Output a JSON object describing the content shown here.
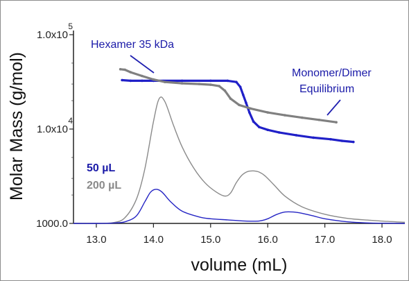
{
  "chart_data": {
    "type": "line",
    "xlabel": "volume (mL)",
    "ylabel": "Molar Mass (g/mol)",
    "xlim": [
      12.6,
      18.4
    ],
    "x_ticks": [
      "13.0",
      "14.0",
      "15.0",
      "16.0",
      "17.0",
      "18.0"
    ],
    "y_scale": "log",
    "ylim": [
      1000,
      100000
    ],
    "y_ticks": [
      {
        "value": 1000,
        "label": "1000.0"
      },
      {
        "value": 10000,
        "label": "1.0x10",
        "exp": "4"
      },
      {
        "value": 100000,
        "label": "1.0x10",
        "exp": "5"
      }
    ],
    "legend": [
      {
        "label": "50 µL",
        "color": "#1a1aa8"
      },
      {
        "label": "200 µL",
        "color": "#8a8a8a"
      }
    ],
    "annotations": [
      {
        "text": "Hexamer 35 kDa",
        "color": "#1a1aa8"
      },
      {
        "text_lines": [
          "Monomer/Dimer",
          "Equilibrium"
        ],
        "color": "#1a1aa8"
      }
    ],
    "series": [
      {
        "name": "50 µL molar mass",
        "color": "#2020c8",
        "marker": "dots",
        "x": [
          13.45,
          13.6,
          13.8,
          14.0,
          14.5,
          15.0,
          15.3,
          15.45,
          15.52,
          15.57,
          15.62,
          15.68,
          15.75,
          15.85,
          16.0,
          16.2,
          16.5,
          16.8,
          17.1,
          17.3,
          17.5
        ],
        "y": [
          33000,
          32500,
          32500,
          32500,
          32500,
          32500,
          32500,
          31500,
          28000,
          23000,
          19000,
          15000,
          12000,
          10500,
          9800,
          9200,
          8600,
          8100,
          7800,
          7500,
          7300
        ]
      },
      {
        "name": "200 µL molar mass",
        "color": "#808080",
        "marker": "dots",
        "x": [
          13.42,
          13.5,
          13.6,
          13.8,
          14.0,
          14.2,
          14.5,
          14.8,
          15.0,
          15.15,
          15.25,
          15.35,
          15.5,
          15.7,
          16.0,
          16.3,
          16.6,
          16.9,
          17.2
        ],
        "y": [
          43000,
          42500,
          40000,
          36500,
          33500,
          31500,
          30500,
          30000,
          29500,
          28500,
          25500,
          21000,
          18000,
          16500,
          15000,
          14000,
          13200,
          12500,
          11800
        ]
      },
      {
        "name": "200 µL signal",
        "color": "#8a8a8a",
        "x": [
          12.6,
          13.0,
          13.3,
          13.5,
          13.7,
          13.85,
          14.0,
          14.1,
          14.2,
          14.35,
          14.5,
          14.7,
          14.9,
          15.1,
          15.25,
          15.35,
          15.45,
          15.55,
          15.65,
          15.75,
          15.85,
          15.95,
          16.1,
          16.3,
          16.6,
          17.0,
          17.4,
          17.8,
          18.1,
          18.4
        ],
        "y": [
          1000,
          1002,
          1020,
          1150,
          1800,
          3800,
          12000,
          21000,
          19500,
          11000,
          6500,
          3900,
          2700,
          2150,
          1950,
          2100,
          2700,
          3250,
          3550,
          3600,
          3500,
          3200,
          2600,
          1950,
          1500,
          1250,
          1130,
          1080,
          1050,
          1030
        ]
      },
      {
        "name": "50 µL signal",
        "color": "#2424c4",
        "x": [
          12.6,
          13.0,
          13.3,
          13.5,
          13.7,
          13.85,
          13.95,
          14.05,
          14.15,
          14.3,
          14.5,
          14.8,
          15.0,
          15.3,
          15.6,
          15.85,
          16.0,
          16.15,
          16.3,
          16.45,
          16.6,
          16.8,
          17.0,
          17.4,
          17.8,
          18.1,
          18.4
        ],
        "y": [
          1000,
          1000,
          1010,
          1040,
          1200,
          1700,
          2150,
          2300,
          2150,
          1700,
          1350,
          1170,
          1120,
          1090,
          1060,
          1060,
          1120,
          1240,
          1320,
          1320,
          1280,
          1200,
          1120,
          1040,
          1010,
          1005,
          1000
        ]
      }
    ]
  }
}
